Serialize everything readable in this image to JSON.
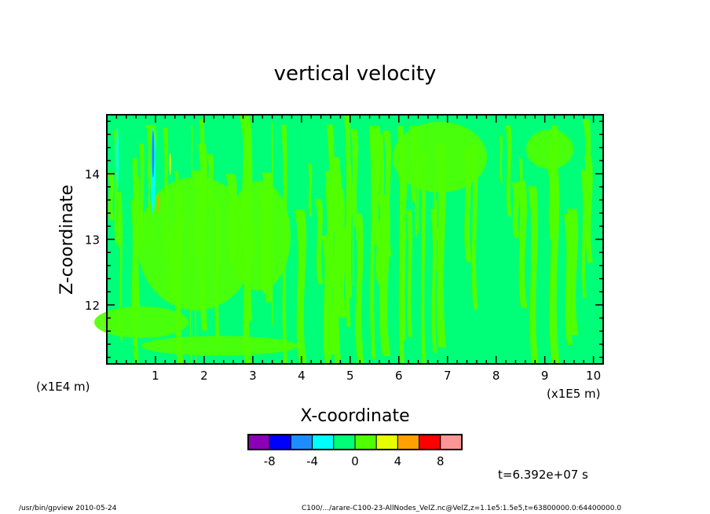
{
  "chart_data": {
    "type": "heatmap",
    "title": "vertical velocity",
    "xlabel": "X-coordinate",
    "ylabel": "Z-coordinate",
    "x_unit_left": "(x1E4 m)",
    "x_unit_right": "(x1E5 m)",
    "x_ticks": [
      1,
      2,
      3,
      4,
      5,
      6,
      7,
      8,
      9,
      10
    ],
    "y_ticks": [
      12,
      13,
      14
    ],
    "xlim": [
      0,
      10.2
    ],
    "ylim": [
      11.1,
      14.9
    ],
    "colorbar": {
      "colors": [
        "#8b00b4",
        "#0000ff",
        "#1e8cff",
        "#00ffff",
        "#00ff78",
        "#50ff00",
        "#e6ff00",
        "#ffa000",
        "#ff0000",
        "#ff9696"
      ],
      "boundaries": [
        -10,
        -8,
        -6,
        -4,
        -2,
        0,
        2,
        4,
        6,
        8,
        10
      ],
      "tick_labels": [
        "-8",
        "-4",
        "0",
        "4",
        "8"
      ],
      "tick_values": [
        -8,
        -4,
        0,
        4,
        8
      ]
    },
    "field_dominant_levels": [
      {
        "range": "-2..0",
        "color": "#00ff78"
      },
      {
        "range": "0..2",
        "color": "#50ff00"
      }
    ],
    "time_label": "t=6.392e+07 s"
  },
  "footer": {
    "left": "/usr/bin/gpview   2010-05-24",
    "right": "C100/.../arare-C100-23-AllNodes_VelZ.nc@VelZ,z=1.1e5:1.5e5,t=63800000.0:64400000.0"
  }
}
